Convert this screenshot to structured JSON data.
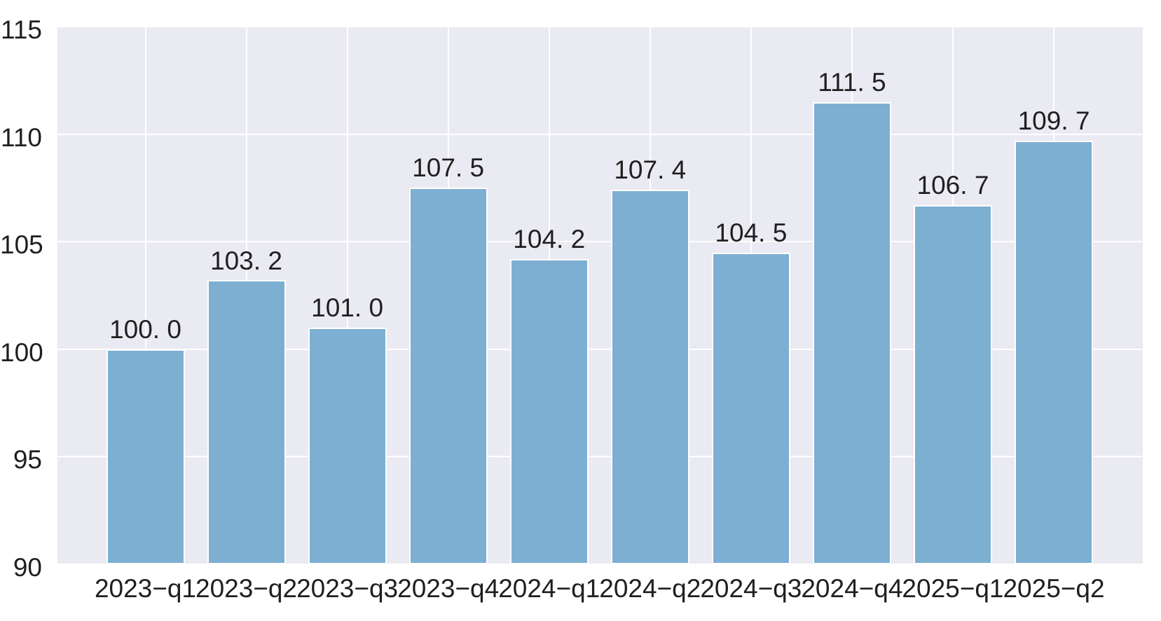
{
  "chart_data": {
    "type": "bar",
    "title": "",
    "xlabel": "",
    "ylabel": "",
    "categories": [
      "2023-q1",
      "2023-q2",
      "2023-q3",
      "2023-q4",
      "2024-q1",
      "2024-q2",
      "2024-q3",
      "2024-q4",
      "2025-q1",
      "2025-q2"
    ],
    "values": [
      100.0,
      103.2,
      101.0,
      107.5,
      104.2,
      107.4,
      104.5,
      111.5,
      106.7,
      109.7
    ],
    "category_labels_display": [
      "2023−q1",
      "2023−q2",
      "2023−q3",
      "2023−q4",
      "2024−q1",
      "2024−q2",
      "2024−q3",
      "2024−q4",
      "2025−q1",
      "2025−q2"
    ],
    "value_labels_display": [
      "100. 0",
      "103. 2",
      "101. 0",
      "107. 5",
      "104. 2",
      "107. 4",
      "104. 5",
      "111. 5",
      "106. 7",
      "109. 7"
    ],
    "ylim": [
      90,
      115
    ],
    "yticks": [
      90,
      95,
      100,
      105,
      110,
      115
    ],
    "ytick_labels": [
      "90",
      "95",
      "100",
      "105",
      "110",
      "115"
    ],
    "grid": "on",
    "legend_position": "none",
    "colors": {
      "bar_fill": "#7dafd2",
      "bar_edge": "#ffffff",
      "plot_background": "#eaeaf2",
      "page_background": "#ffffff",
      "gridline": "#ffffff",
      "text": "#1f1f1f"
    }
  }
}
